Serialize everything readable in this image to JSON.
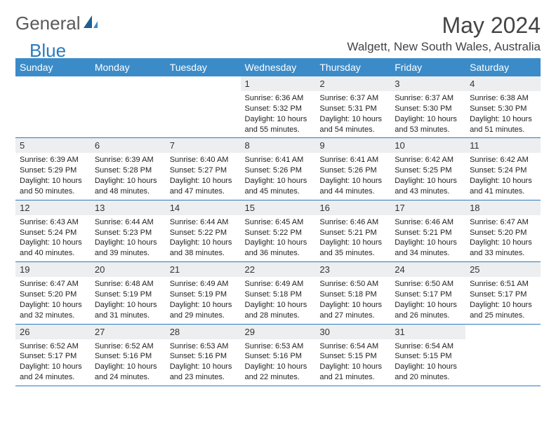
{
  "logo": {
    "part1": "General",
    "part2": "Blue"
  },
  "title": "May 2024",
  "location": "Walgett, New South Wales, Australia",
  "colors": {
    "header_bg": "#3b8bc9",
    "header_text": "#ffffff",
    "daynum_bg": "#eceeef",
    "border": "#2b7bbf",
    "logo_gray": "#5a5a5a",
    "logo_blue": "#2b7bbf"
  },
  "weekdays": [
    "Sunday",
    "Monday",
    "Tuesday",
    "Wednesday",
    "Thursday",
    "Friday",
    "Saturday"
  ],
  "weeks": [
    [
      null,
      null,
      null,
      {
        "n": "1",
        "sr": "6:36 AM",
        "ss": "5:32 PM",
        "dl": "10 hours and 55 minutes."
      },
      {
        "n": "2",
        "sr": "6:37 AM",
        "ss": "5:31 PM",
        "dl": "10 hours and 54 minutes."
      },
      {
        "n": "3",
        "sr": "6:37 AM",
        "ss": "5:30 PM",
        "dl": "10 hours and 53 minutes."
      },
      {
        "n": "4",
        "sr": "6:38 AM",
        "ss": "5:30 PM",
        "dl": "10 hours and 51 minutes."
      }
    ],
    [
      {
        "n": "5",
        "sr": "6:39 AM",
        "ss": "5:29 PM",
        "dl": "10 hours and 50 minutes."
      },
      {
        "n": "6",
        "sr": "6:39 AM",
        "ss": "5:28 PM",
        "dl": "10 hours and 48 minutes."
      },
      {
        "n": "7",
        "sr": "6:40 AM",
        "ss": "5:27 PM",
        "dl": "10 hours and 47 minutes."
      },
      {
        "n": "8",
        "sr": "6:41 AM",
        "ss": "5:26 PM",
        "dl": "10 hours and 45 minutes."
      },
      {
        "n": "9",
        "sr": "6:41 AM",
        "ss": "5:26 PM",
        "dl": "10 hours and 44 minutes."
      },
      {
        "n": "10",
        "sr": "6:42 AM",
        "ss": "5:25 PM",
        "dl": "10 hours and 43 minutes."
      },
      {
        "n": "11",
        "sr": "6:42 AM",
        "ss": "5:24 PM",
        "dl": "10 hours and 41 minutes."
      }
    ],
    [
      {
        "n": "12",
        "sr": "6:43 AM",
        "ss": "5:24 PM",
        "dl": "10 hours and 40 minutes."
      },
      {
        "n": "13",
        "sr": "6:44 AM",
        "ss": "5:23 PM",
        "dl": "10 hours and 39 minutes."
      },
      {
        "n": "14",
        "sr": "6:44 AM",
        "ss": "5:22 PM",
        "dl": "10 hours and 38 minutes."
      },
      {
        "n": "15",
        "sr": "6:45 AM",
        "ss": "5:22 PM",
        "dl": "10 hours and 36 minutes."
      },
      {
        "n": "16",
        "sr": "6:46 AM",
        "ss": "5:21 PM",
        "dl": "10 hours and 35 minutes."
      },
      {
        "n": "17",
        "sr": "6:46 AM",
        "ss": "5:21 PM",
        "dl": "10 hours and 34 minutes."
      },
      {
        "n": "18",
        "sr": "6:47 AM",
        "ss": "5:20 PM",
        "dl": "10 hours and 33 minutes."
      }
    ],
    [
      {
        "n": "19",
        "sr": "6:47 AM",
        "ss": "5:20 PM",
        "dl": "10 hours and 32 minutes."
      },
      {
        "n": "20",
        "sr": "6:48 AM",
        "ss": "5:19 PM",
        "dl": "10 hours and 31 minutes."
      },
      {
        "n": "21",
        "sr": "6:49 AM",
        "ss": "5:19 PM",
        "dl": "10 hours and 29 minutes."
      },
      {
        "n": "22",
        "sr": "6:49 AM",
        "ss": "5:18 PM",
        "dl": "10 hours and 28 minutes."
      },
      {
        "n": "23",
        "sr": "6:50 AM",
        "ss": "5:18 PM",
        "dl": "10 hours and 27 minutes."
      },
      {
        "n": "24",
        "sr": "6:50 AM",
        "ss": "5:17 PM",
        "dl": "10 hours and 26 minutes."
      },
      {
        "n": "25",
        "sr": "6:51 AM",
        "ss": "5:17 PM",
        "dl": "10 hours and 25 minutes."
      }
    ],
    [
      {
        "n": "26",
        "sr": "6:52 AM",
        "ss": "5:17 PM",
        "dl": "10 hours and 24 minutes."
      },
      {
        "n": "27",
        "sr": "6:52 AM",
        "ss": "5:16 PM",
        "dl": "10 hours and 24 minutes."
      },
      {
        "n": "28",
        "sr": "6:53 AM",
        "ss": "5:16 PM",
        "dl": "10 hours and 23 minutes."
      },
      {
        "n": "29",
        "sr": "6:53 AM",
        "ss": "5:16 PM",
        "dl": "10 hours and 22 minutes."
      },
      {
        "n": "30",
        "sr": "6:54 AM",
        "ss": "5:15 PM",
        "dl": "10 hours and 21 minutes."
      },
      {
        "n": "31",
        "sr": "6:54 AM",
        "ss": "5:15 PM",
        "dl": "10 hours and 20 minutes."
      },
      null
    ]
  ],
  "labels": {
    "sunrise": "Sunrise:",
    "sunset": "Sunset:",
    "daylight": "Daylight:"
  }
}
